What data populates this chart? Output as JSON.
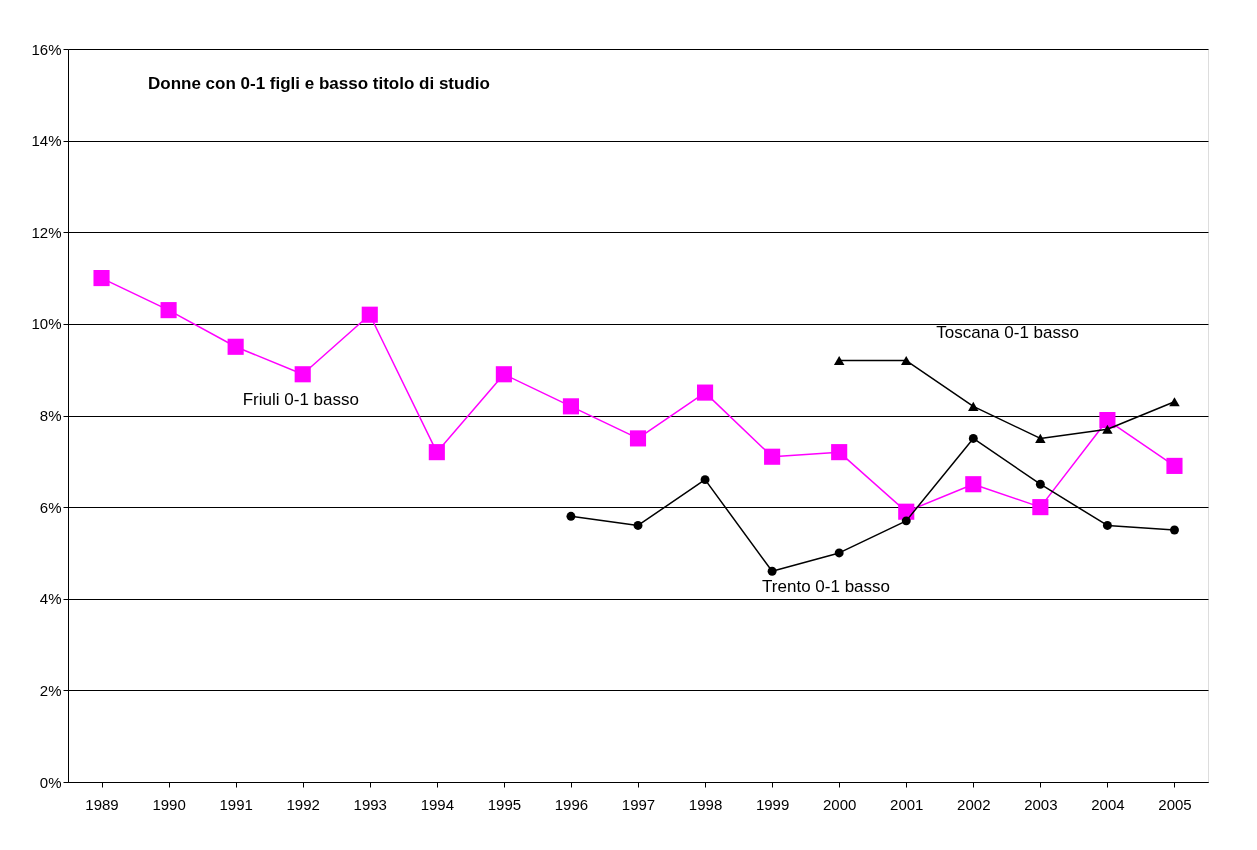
{
  "chart_data": {
    "type": "line",
    "title": "Donne con 0-1 figli e basso titolo di studio",
    "categories": [
      "1989",
      "1990",
      "1991",
      "1992",
      "1993",
      "1994",
      "1995",
      "1996",
      "1997",
      "1998",
      "1999",
      "2000",
      "2001",
      "2002",
      "2003",
      "2004",
      "2005"
    ],
    "series": [
      {
        "name": "Friuli 0-1 basso",
        "color": "#ff00ff",
        "marker": "square",
        "values": [
          11.0,
          10.3,
          9.5,
          8.9,
          10.2,
          7.2,
          8.9,
          8.2,
          7.5,
          8.5,
          7.1,
          7.2,
          5.9,
          6.5,
          6.0,
          7.9,
          6.9
        ]
      },
      {
        "name": "Trento 0-1 basso",
        "color": "#000000",
        "marker": "circle",
        "values": [
          null,
          null,
          null,
          null,
          null,
          null,
          null,
          5.8,
          5.6,
          6.6,
          4.6,
          5.0,
          5.7,
          7.5,
          6.5,
          5.6,
          5.5
        ]
      },
      {
        "name": "Toscana 0-1 basso",
        "color": "#000000",
        "marker": "triangle",
        "values": [
          null,
          null,
          null,
          null,
          null,
          null,
          null,
          null,
          null,
          null,
          null,
          9.2,
          9.2,
          8.2,
          7.5,
          7.7,
          8.3
        ]
      }
    ],
    "ylim": [
      0,
      16
    ],
    "yticks": [
      {
        "value": 0,
        "label": "0%"
      },
      {
        "value": 2,
        "label": "2%"
      },
      {
        "value": 4,
        "label": "4%"
      },
      {
        "value": 6,
        "label": "6%"
      },
      {
        "value": 8,
        "label": "8%"
      },
      {
        "value": 10,
        "label": "10%"
      },
      {
        "value": 12,
        "label": "12%"
      },
      {
        "value": 14,
        "label": "14%"
      },
      {
        "value": 16,
        "label": "16%"
      }
    ],
    "grid": "y"
  }
}
